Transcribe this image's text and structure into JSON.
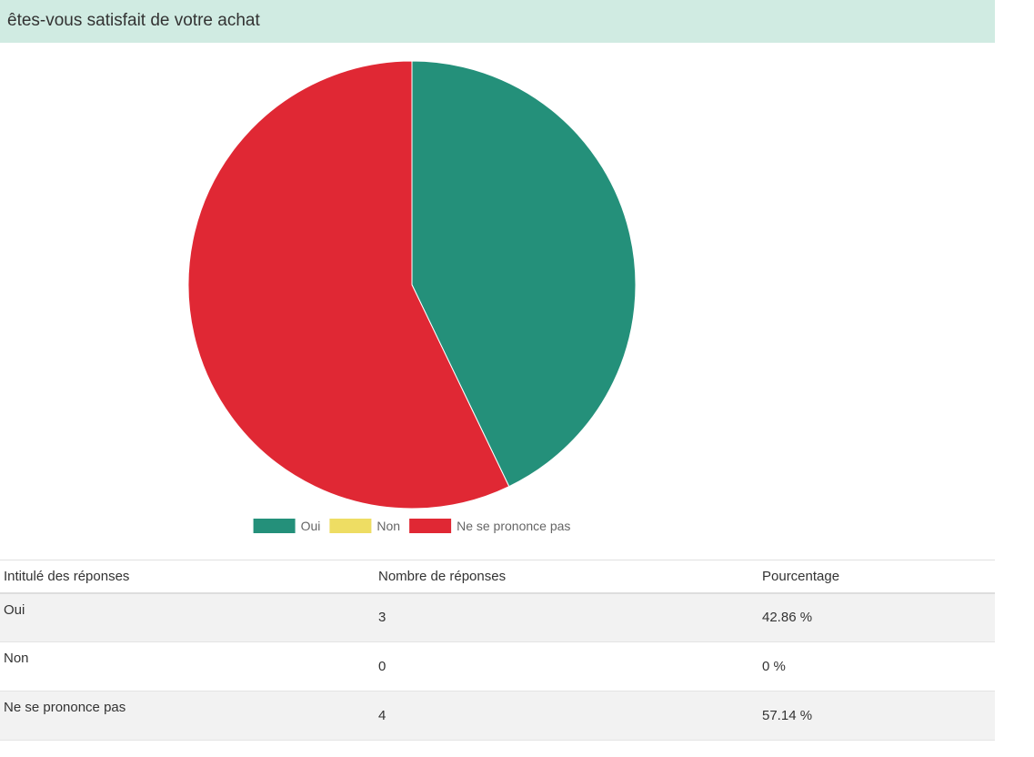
{
  "question": {
    "title": "êtes-vous satisfait de votre achat"
  },
  "colors": {
    "header_bg": "#d0ebe2",
    "oui": "#24907a",
    "non": "#eedd63",
    "ne_se_prononce_pas": "#e02834"
  },
  "chart_data": {
    "type": "pie",
    "categories": [
      "Oui",
      "Non",
      "Ne se prononce pas"
    ],
    "values": [
      3,
      0,
      4
    ],
    "percentages": [
      42.86,
      0,
      57.14
    ],
    "colors": [
      "#24907a",
      "#eedd63",
      "#e02834"
    ],
    "legend": {
      "placement": "bottom",
      "entries": [
        "Oui",
        "Non",
        "Ne se prononce pas"
      ]
    },
    "start_angle": "top",
    "direction": "clockwise"
  },
  "table": {
    "headers": [
      "Intitulé des réponses",
      "Nombre de réponses",
      "Pourcentage"
    ],
    "rows": [
      {
        "label": "Oui",
        "count": "3",
        "percent": "42.86 %"
      },
      {
        "label": "Non",
        "count": "0",
        "percent": "0 %"
      },
      {
        "label": "Ne se prononce pas",
        "count": "4",
        "percent": "57.14 %"
      }
    ]
  }
}
